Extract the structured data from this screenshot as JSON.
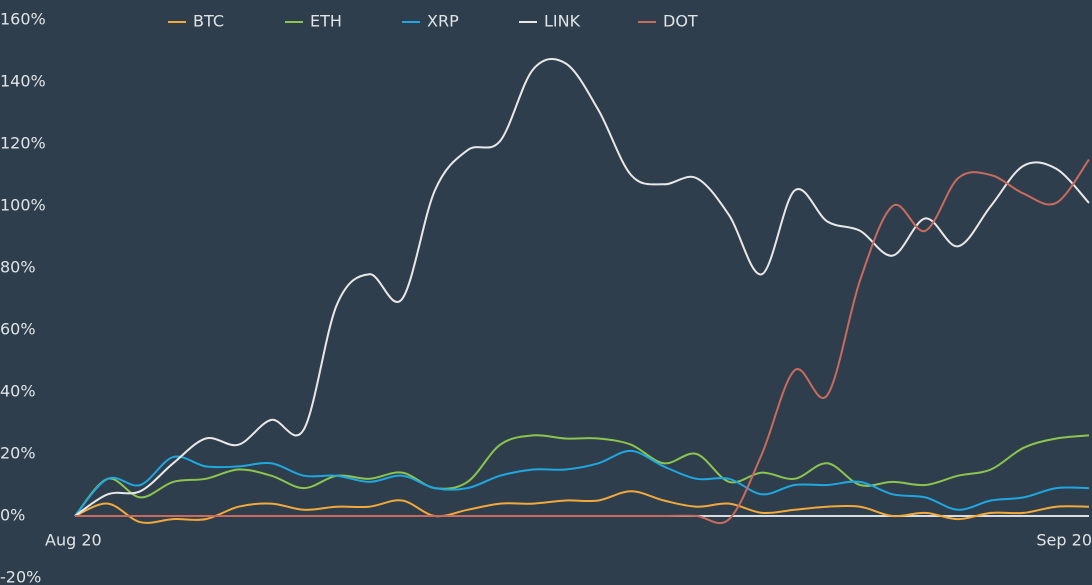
{
  "chart_data": {
    "type": "line",
    "categories": [
      "Aug 20",
      null,
      null,
      null,
      null,
      null,
      null,
      null,
      null,
      null,
      null,
      null,
      null,
      null,
      null,
      null,
      null,
      null,
      null,
      null,
      null,
      null,
      null,
      null,
      null,
      null,
      null,
      null,
      null,
      null,
      null,
      "Sep 20"
    ],
    "series": [
      {
        "name": "BTC",
        "color": "#f2a93b",
        "values": [
          0,
          4,
          -2,
          -1,
          -1,
          3,
          4,
          2,
          3,
          3,
          5,
          0,
          2,
          4,
          4,
          5,
          5,
          8,
          5,
          3,
          4,
          1,
          2,
          3,
          3,
          0,
          1,
          -1,
          1,
          1,
          3,
          3
        ]
      },
      {
        "name": "ETH",
        "color": "#8dc44e",
        "values": [
          0,
          12,
          6,
          11,
          12,
          15,
          13,
          9,
          13,
          12,
          14,
          9,
          11,
          23,
          26,
          25,
          25,
          23,
          17,
          20,
          11,
          14,
          12,
          17,
          10,
          11,
          10,
          13,
          15,
          22,
          25,
          26
        ]
      },
      {
        "name": "XRP",
        "color": "#1ea7e0",
        "values": [
          0,
          12,
          10,
          19,
          16,
          16,
          17,
          13,
          13,
          11,
          13,
          9,
          9,
          13,
          15,
          15,
          17,
          21,
          16,
          12,
          12,
          7,
          10,
          10,
          11,
          7,
          6,
          2,
          5,
          6,
          9,
          9
        ]
      },
      {
        "name": "LINK",
        "color": "#e8e8e8",
        "values": [
          0,
          7,
          8,
          17,
          25,
          23,
          31,
          28,
          68,
          78,
          70,
          105,
          118,
          121,
          144,
          146,
          131,
          110,
          107,
          109,
          97,
          78,
          105,
          95,
          92,
          84,
          96,
          87,
          100,
          113,
          112,
          101
        ]
      },
      {
        "name": "DOT",
        "color": "#c86b5e",
        "values": [
          0,
          0,
          0,
          0,
          0,
          0,
          0,
          0,
          0,
          0,
          0,
          0,
          0,
          0,
          0,
          0,
          0,
          0,
          0,
          0,
          -1,
          20,
          47,
          39,
          76,
          100,
          92,
          109,
          110,
          104,
          101,
          115
        ]
      }
    ],
    "ylim": [
      -20,
      160
    ],
    "yticks": [
      {
        "value": -20,
        "label": "-20%"
      },
      {
        "value": 0,
        "label": "0%"
      },
      {
        "value": 20,
        "label": "20%"
      },
      {
        "value": 40,
        "label": "40%"
      },
      {
        "value": 60,
        "label": "60%"
      },
      {
        "value": 80,
        "label": "80%"
      },
      {
        "value": 100,
        "label": "100%"
      },
      {
        "value": 120,
        "label": "120%"
      },
      {
        "value": 140,
        "label": "140%"
      },
      {
        "value": 160,
        "label": "160%"
      }
    ],
    "grid": false
  }
}
